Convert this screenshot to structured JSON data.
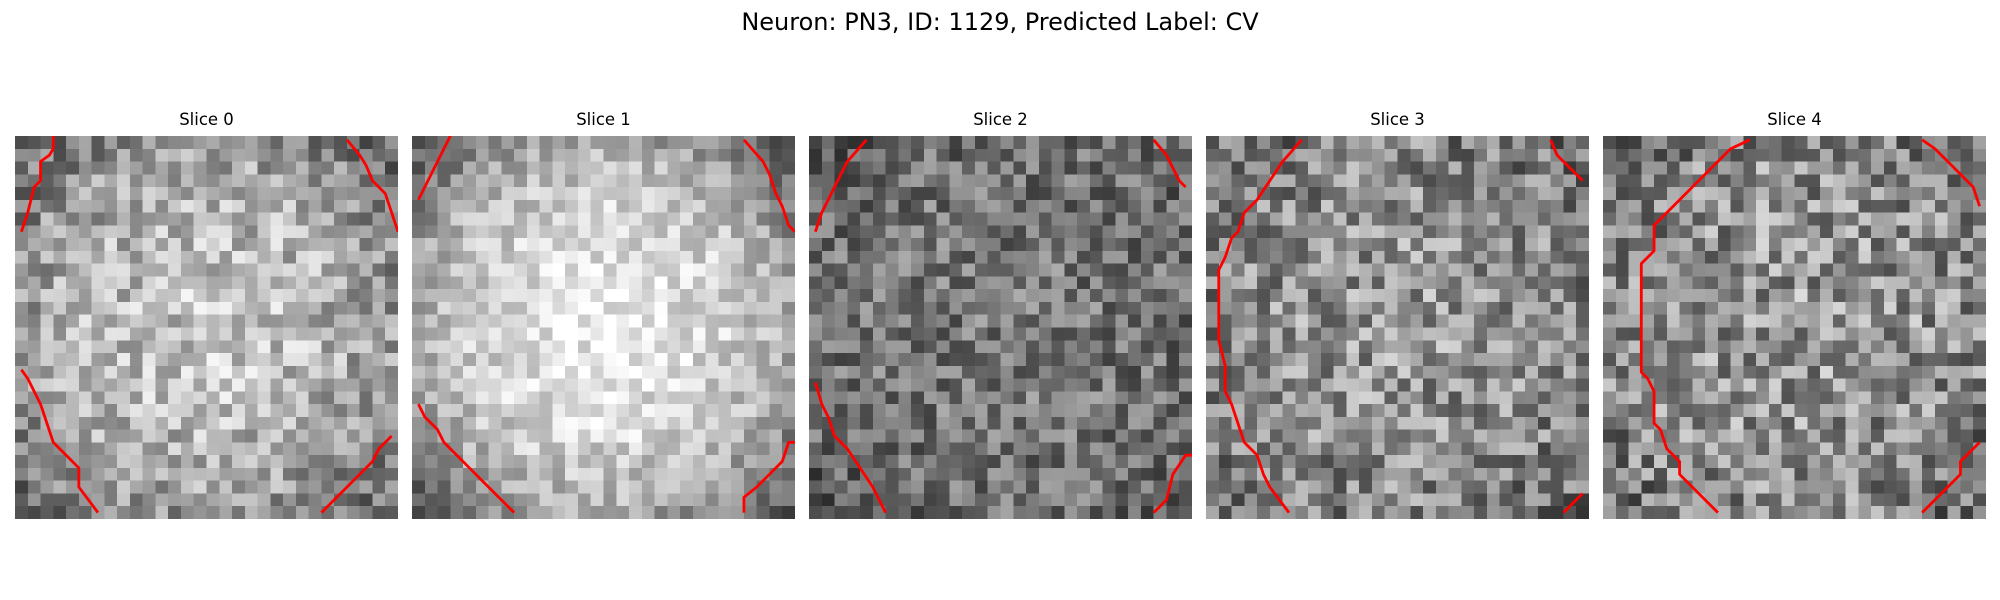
{
  "figure": {
    "title": "Neuron: PN3, ID: 1129, Predicted Label: CV"
  },
  "colors": {
    "contour": "#ff0000",
    "background": "#ffffff"
  },
  "slices": [
    {
      "title": "Slice 0"
    },
    {
      "title": "Slice 1"
    },
    {
      "title": "Slice 2"
    },
    {
      "title": "Slice 3"
    },
    {
      "title": "Slice 4"
    }
  ]
}
